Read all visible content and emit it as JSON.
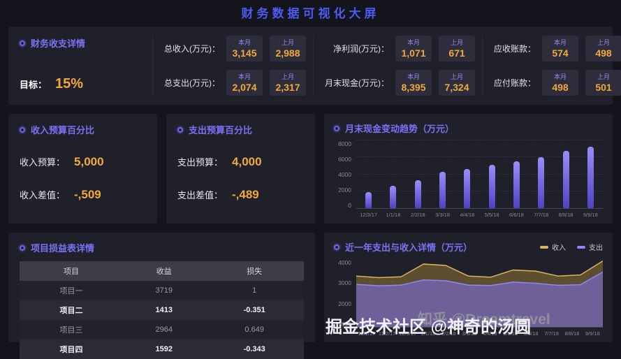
{
  "header": {
    "title": "财务数据可视化大屏"
  },
  "overview": {
    "panel_title": "财务收支详情",
    "target_label": "目标：",
    "target_value": "15%",
    "this_label": "本月",
    "last_label": "上月",
    "metrics": [
      {
        "label": "总收入(万元)：",
        "this": "3,145",
        "last": "2,988"
      },
      {
        "label": "总支出(万元)：",
        "this": "2,074",
        "last": "2,317"
      },
      {
        "label": "净利润(万元)：",
        "this": "1,071",
        "last": "671"
      },
      {
        "label": "月末现金(万元)：",
        "this": "8,395",
        "last": "7,324"
      },
      {
        "label": "应收账款：",
        "this": "574",
        "last": "498"
      },
      {
        "label": "应付账款：",
        "this": "498",
        "last": "501"
      }
    ]
  },
  "income_budget": {
    "panel_title": "收入预算百分比",
    "rows": [
      {
        "label": "收入预算：",
        "value": "5,000"
      },
      {
        "label": "收入差值：",
        "value": "-,509"
      }
    ]
  },
  "expense_budget": {
    "panel_title": "支出预算百分比",
    "rows": [
      {
        "label": "支出预算：",
        "value": "4,000"
      },
      {
        "label": "支出差值：",
        "value": "-,489"
      }
    ]
  },
  "cash_trend": {
    "panel_title": "月末现金变动趋势（万元）"
  },
  "profit_table": {
    "panel_title": "项目损益表详情",
    "headers": [
      "项目",
      "收益",
      "损失"
    ],
    "rows": [
      {
        "cells": [
          "项目一",
          "3719",
          "1"
        ]
      },
      {
        "cells": [
          "项目二",
          "1413",
          "-0.351"
        ]
      },
      {
        "cells": [
          "项目三",
          "2964",
          "0.649"
        ]
      },
      {
        "cells": [
          "项目四",
          "1592",
          "-0.343"
        ]
      }
    ]
  },
  "year_chart": {
    "panel_title": "近一年支出与收入详情（万元）"
  },
  "watermarks": {
    "zhihu": "知乎 @Dreamtravel",
    "juejin": "掘金技术社区 @神奇的汤圆"
  },
  "colors": {
    "accent_blue": "#4d5bf0",
    "panel_title_purple": "#7a72f5",
    "value_orange": "#f2a93b",
    "bar_purple_top": "#9a8df8",
    "bar_purple_bottom": "#4f43c6",
    "income_yellow": "#d8b45a",
    "expense_purple": "#8f85f5"
  },
  "chart_data": [
    {
      "type": "bar",
      "title": "月末现金变动趋势（万元）",
      "categories": [
        "12/3/17",
        "1/1/18",
        "2/2/18",
        "3/3/18",
        "4/4/18",
        "5/5/18",
        "6/6/18",
        "7/7/18",
        "8/8/18",
        "9/9/18"
      ],
      "values": [
        1900,
        2600,
        3300,
        4300,
        4650,
        5150,
        5500,
        6000,
        6800,
        7300
      ],
      "xlabel": "",
      "ylabel": "",
      "ylim": [
        0,
        8000
      ],
      "yticks": [
        0,
        2000,
        4000,
        6000,
        8000
      ],
      "grid": true,
      "legend_position": "none"
    },
    {
      "type": "area",
      "title": "近一年支出与收入详情（万元）",
      "categories": [
        "10/1/17",
        "11/2/17",
        "12/3/17",
        "1/1/18",
        "2/2/18",
        "3/3/18",
        "4/4/18",
        "5/5/18",
        "6/6/18",
        "7/7/18",
        "8/8/18",
        "9/9/18"
      ],
      "series": [
        {
          "name": "收入",
          "color": "#d8b45a",
          "fill": "rgba(170,135,55,0.45)",
          "values": [
            3250,
            3180,
            3220,
            3780,
            3720,
            3250,
            3200,
            3520,
            3470,
            3250,
            3300,
            3920
          ]
        },
        {
          "name": "支出",
          "color": "#8f85f5",
          "fill": "rgba(125,112,242,0.55)",
          "values": [
            2880,
            2820,
            2850,
            3080,
            3040,
            2850,
            2830,
            2980,
            2930,
            2840,
            2870,
            3430
          ]
        }
      ],
      "xlabel": "",
      "ylabel": "",
      "ylim": [
        1000,
        4000
      ],
      "yticks": [
        1000,
        2000,
        3000,
        4000
      ],
      "grid": true,
      "legend_position": "top-right"
    }
  ]
}
